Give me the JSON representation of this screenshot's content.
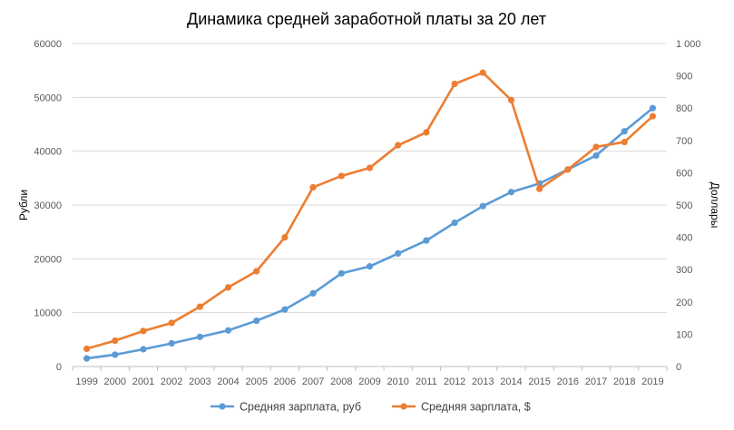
{
  "chart_data": {
    "type": "line",
    "title": "Динамика  средней заработной платы  за 20 лет",
    "categories": [
      "1999",
      "2000",
      "2001",
      "2002",
      "2003",
      "2004",
      "2005",
      "2006",
      "2007",
      "2008",
      "2009",
      "2010",
      "2011",
      "2012",
      "2013",
      "2014",
      "2015",
      "2016",
      "2017",
      "2018",
      "2019"
    ],
    "y_left": {
      "label": "Рубли",
      "lim": [
        0,
        60000
      ],
      "ticks": [
        "0",
        "10000",
        "20000",
        "30000",
        "40000",
        "50000",
        "60000"
      ],
      "tick_values": [
        0,
        10000,
        20000,
        30000,
        40000,
        50000,
        60000
      ]
    },
    "y_right": {
      "label": "Доллары",
      "lim": [
        0,
        1000
      ],
      "ticks": [
        "0",
        "100",
        "200",
        "300",
        "400",
        "500",
        "600",
        "700",
        "800",
        "900",
        "1 000"
      ],
      "tick_values": [
        0,
        100,
        200,
        300,
        400,
        500,
        600,
        700,
        800,
        900,
        1000
      ]
    },
    "series": [
      {
        "name": "Средняя зарплата, руб",
        "axis": "left",
        "color": "#5b9bd5",
        "values": [
          1500,
          2200,
          3200,
          4300,
          5500,
          6700,
          8500,
          10600,
          13600,
          17300,
          18600,
          21000,
          23400,
          26700,
          29800,
          32400,
          34000,
          36600,
          39200,
          43700,
          48000
        ]
      },
      {
        "name": "Средняя зарплата, $",
        "axis": "right",
        "color": "#ed7d31",
        "values": [
          55,
          80,
          110,
          135,
          185,
          245,
          295,
          400,
          555,
          590,
          615,
          685,
          725,
          875,
          910,
          825,
          550,
          610,
          680,
          695,
          775
        ]
      }
    ],
    "grid": true,
    "legend": "bottom"
  }
}
